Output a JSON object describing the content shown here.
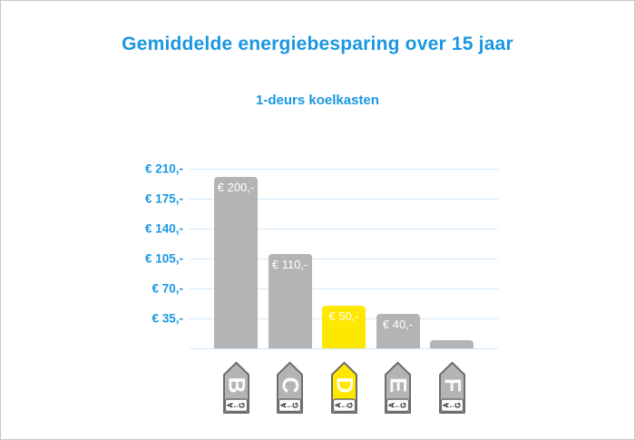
{
  "window": {
    "border_color": "#c8c8c8",
    "background": "#ffffff"
  },
  "title": "Gemiddelde energiebesparing over 15 jaar",
  "subtitle": "1-deurs koelkasten",
  "theme": {
    "accent_blue": "#1a97e0",
    "gridline_blue": "#d3e9f8",
    "bar_gray": "#b4b4b4",
    "highlight_yellow": "#ffe800",
    "icon_outline_gray": "#6d6d6d",
    "value_label_white": "#ffffff"
  },
  "chart_data": {
    "type": "bar",
    "title": "Gemiddelde energiebesparing over 15 jaar",
    "subtitle": "1-deurs koelkasten",
    "categories": [
      "B",
      "C",
      "D",
      "E",
      "F"
    ],
    "values": [
      200,
      110,
      50,
      40,
      10
    ],
    "bar_labels": [
      "€ 200,-",
      "€ 110,-",
      "€ 50,-",
      "€ 40,-",
      ""
    ],
    "bar_colors": [
      "#b4b4b4",
      "#b4b4b4",
      "#ffe800",
      "#b4b4b4",
      "#b4b4b4"
    ],
    "highlighted_category": "D",
    "y_ticks": [
      "€ 210,-",
      "€ 175,-",
      "€ 140,-",
      "€ 105,-",
      "€ 70,-",
      "€ 35,-"
    ],
    "y_tick_values": [
      210,
      175,
      140,
      105,
      70,
      35
    ],
    "ylim": [
      0,
      210
    ],
    "xlabel": "",
    "ylabel": "",
    "grid": true,
    "legend": false,
    "x_axis_icon": {
      "type": "eu-energy-label-tag",
      "scale": {
        "from": "A",
        "arrow": "←",
        "to": "G"
      }
    }
  }
}
